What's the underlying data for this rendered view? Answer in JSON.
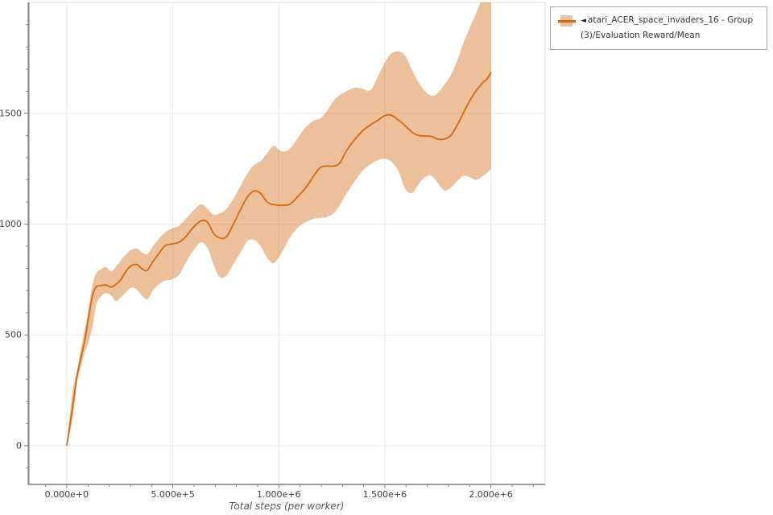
{
  "figure": {
    "xlabel": "Total steps (per worker)",
    "legend": {
      "marker": "◄",
      "label": "atari_ACER_space_invaders_16 - Group(3)/Evaluation Reward/Mean"
    },
    "colors": {
      "line": "#d2690e",
      "band": "rgba(210,105,15,0.42)",
      "grid": "#e9e9e9",
      "spine_light": "#dedede",
      "spine_dark": "#7f7f7f",
      "tick_label": "#404040",
      "axis_label": "#555555",
      "legend_border": "#a6a6a6",
      "legend_text": "#333333"
    }
  },
  "chart_data": {
    "type": "line",
    "title": "",
    "xlabel": "Total steps (per worker)",
    "ylabel": "",
    "grid": true,
    "legend_position": "outside-top-right",
    "xlim": [
      -182000,
      2256000
    ],
    "ylim": [
      -175,
      2001
    ],
    "x_major_ticks": [
      0,
      500000,
      1000000,
      1500000,
      2000000
    ],
    "x_tick_labels": [
      "0.000e+0",
      "5.000e+5",
      "1.000e+6",
      "1.500e+6",
      "2.000e+6"
    ],
    "x_minor_step": 100000,
    "x_minor_range": [
      -100000,
      2200000
    ],
    "y_major_ticks": [
      0,
      500,
      1000,
      1500
    ],
    "y_tick_labels": [
      "0",
      "500",
      "1000",
      "1500"
    ],
    "y_minor_step": 100,
    "y_minor_range": [
      -100,
      1900
    ],
    "series": [
      {
        "name": "atari_ACER_space_invaders_16 - Group(3)/Evaluation Reward/Mean",
        "x": [
          0,
          27000,
          46000,
          65000,
          84000,
          103000,
          122000,
          140000,
          163000,
          186000,
          209000,
          232000,
          254000,
          281000,
          304000,
          330000,
          357000,
          380000,
          406000,
          437000,
          463000,
          494000,
          528000,
          558000,
          596000,
          634000,
          665000,
          691000,
          721000,
          752000,
          786000,
          824000,
          854000,
          885000,
          915000,
          945000,
          976000,
          1014000,
          1052000,
          1090000,
          1128000,
          1166000,
          1196000,
          1226000,
          1257000,
          1287000,
          1318000,
          1356000,
          1394000,
          1432000,
          1469000,
          1500000,
          1530000,
          1564000,
          1595000,
          1629000,
          1659000,
          1690000,
          1720000,
          1750000,
          1781000,
          1811000,
          1842000,
          1872000,
          1902000,
          1933000,
          1963000,
          1982000,
          2001000
        ],
        "mean": [
          0,
          170,
          300,
          390,
          470,
          580,
          680,
          718,
          723,
          725,
          716,
          728,
          748,
          790,
          812,
          818,
          797,
          792,
          830,
          870,
          902,
          910,
          918,
          940,
          985,
          1015,
          1008,
          960,
          938,
          942,
          1000,
          1075,
          1125,
          1150,
          1138,
          1100,
          1088,
          1085,
          1090,
          1125,
          1165,
          1220,
          1256,
          1262,
          1262,
          1275,
          1330,
          1380,
          1420,
          1448,
          1470,
          1490,
          1492,
          1470,
          1445,
          1415,
          1400,
          1398,
          1396,
          1384,
          1384,
          1400,
          1448,
          1505,
          1560,
          1605,
          1640,
          1655,
          1685
        ],
        "band_top": [
          5,
          240,
          330,
          430,
          520,
          620,
          730,
          780,
          798,
          805,
          786,
          808,
          835,
          866,
          883,
          890,
          872,
          865,
          900,
          938,
          962,
          980,
          992,
          1020,
          1060,
          1090,
          1068,
          1042,
          1048,
          1068,
          1115,
          1180,
          1232,
          1268,
          1285,
          1320,
          1353,
          1328,
          1340,
          1390,
          1440,
          1468,
          1478,
          1510,
          1555,
          1582,
          1600,
          1615,
          1612,
          1604,
          1670,
          1730,
          1770,
          1780,
          1762,
          1695,
          1640,
          1600,
          1580,
          1592,
          1630,
          1672,
          1740,
          1820,
          1890,
          1958,
          2030,
          2060,
          2080
        ],
        "band_bottom": [
          -5,
          120,
          270,
          350,
          420,
          470,
          540,
          640,
          675,
          688,
          678,
          652,
          668,
          695,
          713,
          705,
          675,
          660,
          700,
          730,
          745,
          750,
          770,
          820,
          880,
          918,
          890,
          820,
          762,
          768,
          820,
          880,
          925,
          928,
          900,
          848,
          824,
          872,
          940,
          985,
          1010,
          1024,
          1028,
          1032,
          1048,
          1085,
          1135,
          1190,
          1240,
          1270,
          1290,
          1295,
          1282,
          1240,
          1160,
          1140,
          1180,
          1212,
          1218,
          1185,
          1152,
          1165,
          1195,
          1218,
          1212,
          1200,
          1218,
          1232,
          1248
        ]
      }
    ]
  }
}
